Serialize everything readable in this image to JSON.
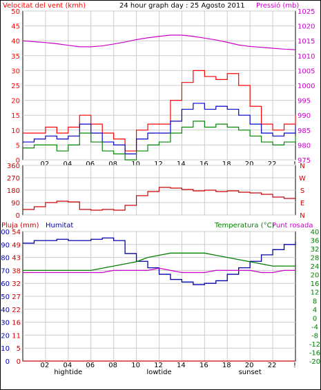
{
  "header": {
    "left_label": "Velocitat del vent (kmh)",
    "center_title": "24 hour graph day : 25 Agosto 2011",
    "right_label": "Pressió (mb)"
  },
  "x_ticks": [
    "02",
    "04",
    "06",
    "08",
    "10",
    "12",
    "14",
    "16",
    "18",
    "20",
    "22",
    "!"
  ],
  "x_markers": [
    "hightide",
    "lowtide",
    "sunset"
  ],
  "panel3_labels": {
    "left_a": "Pluja (mm)",
    "left_b": "Humitat",
    "right_a": "Temperatura (°C)",
    "right_b": "Punt rosada"
  },
  "colors": {
    "wind_gust": "#ff0000",
    "wind_avg": "#0000cc",
    "wind_low": "#008800",
    "pressure": "#cc00cc",
    "direction": "#cc0000",
    "humidity": "#0000aa",
    "temperature": "#008000",
    "dewpoint": "#cc00cc",
    "rain": "#cc0000",
    "grid": "#cccccc"
  },
  "chart_data": [
    {
      "type": "line",
      "y_left": {
        "ticks": [
          "0",
          "5",
          "10",
          "15",
          "20",
          "25",
          "30",
          "35",
          "40",
          "45",
          "50"
        ],
        "range": [
          0,
          50
        ]
      },
      "y_right": {
        "ticks": [
          "975",
          "980",
          "985",
          "990",
          "995",
          "1000",
          "1005",
          "1010",
          "1015",
          "1020",
          "1025"
        ],
        "range": [
          975,
          1025
        ]
      },
      "x": [
        0,
        1,
        2,
        3,
        4,
        5,
        6,
        7,
        8,
        9,
        10,
        11,
        12,
        13,
        14,
        15,
        16,
        17,
        18,
        19,
        20,
        21,
        22,
        23,
        24
      ],
      "series": [
        {
          "key": "gust",
          "values": [
            9,
            9,
            11,
            9,
            11,
            15,
            12,
            9,
            7,
            3,
            10,
            12,
            12,
            20,
            26,
            30,
            28,
            27,
            29,
            25,
            18,
            12,
            10,
            12,
            15
          ]
        },
        {
          "key": "avg",
          "values": [
            6,
            7,
            8,
            7,
            8,
            12,
            9,
            6,
            5,
            2,
            7,
            9,
            9,
            13,
            17,
            19,
            17,
            18,
            17,
            15,
            12,
            9,
            8,
            9,
            11
          ]
        },
        {
          "key": "low",
          "values": [
            4,
            5,
            5,
            3,
            5,
            9,
            6,
            3,
            2,
            0,
            3,
            5,
            6,
            9,
            11,
            13,
            11,
            12,
            11,
            10,
            8,
            6,
            5,
            6,
            8
          ]
        },
        {
          "key": "pressure",
          "values": [
            1015,
            1014.7,
            1014.4,
            1014,
            1013.5,
            1013,
            1013,
            1013.3,
            1013.9,
            1014.6,
            1015.4,
            1016,
            1016.5,
            1016.9,
            1016.9,
            1016.5,
            1015.9,
            1015.3,
            1014.5,
            1013.6,
            1013.1,
            1012.8,
            1012.5,
            1012.2,
            1012
          ]
        }
      ]
    },
    {
      "type": "line",
      "y_left": {
        "ticks": [
          "0",
          "90",
          "180",
          "270",
          "360"
        ],
        "range": [
          0,
          360
        ]
      },
      "y_right": {
        "ticks": [
          "N",
          "W",
          "S",
          "E",
          "N"
        ]
      },
      "x": [
        0,
        1,
        2,
        3,
        4,
        5,
        6,
        7,
        8,
        9,
        10,
        11,
        12,
        13,
        14,
        15,
        16,
        17,
        18,
        19,
        20,
        21,
        22,
        23,
        24
      ],
      "series": [
        {
          "key": "direction",
          "values": [
            40,
            60,
            90,
            100,
            95,
            40,
            35,
            40,
            35,
            70,
            140,
            170,
            200,
            195,
            185,
            175,
            180,
            170,
            175,
            165,
            160,
            150,
            130,
            120,
            120
          ]
        }
      ]
    },
    {
      "type": "line",
      "y_left": {
        "ticks": [
          "0",
          "10",
          "20",
          "30",
          "40",
          "50",
          "60",
          "70",
          "80",
          "90",
          "100"
        ],
        "range": [
          0,
          100
        ]
      },
      "y_left_b": {
        "ticks": [
          "0",
          "5",
          "11",
          "16",
          "22",
          "27",
          "32",
          "38",
          "43",
          "49",
          "54"
        ]
      },
      "y_right": {
        "ticks": [
          "-20",
          "-16",
          "-12",
          "-8",
          "-4",
          "0",
          "4",
          "8",
          "12",
          "16",
          "20",
          "24",
          "28",
          "32",
          "36",
          "40"
        ],
        "range": [
          -20,
          40
        ]
      },
      "x": [
        0,
        1,
        2,
        3,
        4,
        5,
        6,
        7,
        8,
        9,
        10,
        11,
        12,
        13,
        14,
        15,
        16,
        17,
        18,
        19,
        20,
        21,
        22,
        23,
        24
      ],
      "series": [
        {
          "key": "rain",
          "values": [
            0,
            0,
            0,
            0,
            0,
            0,
            0,
            0,
            0,
            0,
            0,
            0,
            0,
            0,
            0,
            0,
            0,
            0,
            0,
            0,
            0,
            0,
            0,
            0,
            0
          ]
        },
        {
          "key": "humidity",
          "values": [
            91,
            93,
            93,
            94,
            93,
            93,
            94,
            95,
            93,
            83,
            77,
            72,
            67,
            63,
            61,
            59,
            60,
            62,
            67,
            72,
            77,
            82,
            86,
            90,
            92
          ]
        },
        {
          "key": "temperature",
          "values": [
            22,
            22,
            22,
            22,
            22,
            22,
            22,
            23,
            24,
            25,
            26,
            28,
            29,
            30,
            30,
            30,
            30,
            29,
            28,
            27,
            26,
            25,
            24,
            24,
            24
          ]
        },
        {
          "key": "dewpoint",
          "values": [
            21,
            21,
            21,
            21,
            21,
            21,
            21,
            21,
            22,
            22,
            22,
            22,
            23,
            22,
            21,
            21,
            21,
            22,
            22,
            22,
            22,
            21,
            21,
            22,
            22
          ]
        }
      ]
    }
  ]
}
